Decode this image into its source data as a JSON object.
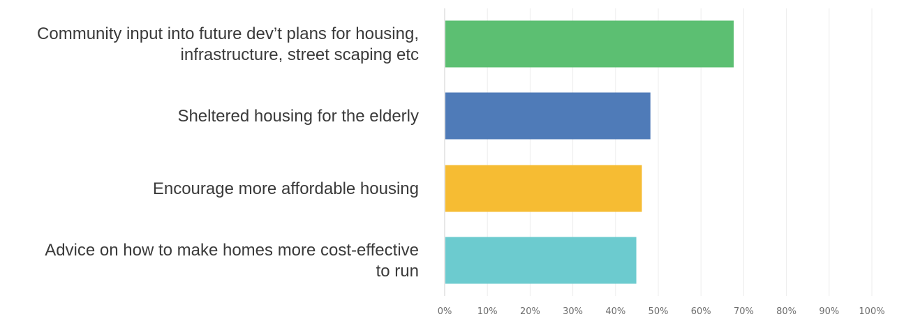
{
  "chart_data": {
    "type": "bar",
    "orientation": "horizontal",
    "categories": [
      [
        "Community input into future dev’t plans for housing,",
        "infrastructure, street scaping etc"
      ],
      [
        "Sheltered housing for the elderly"
      ],
      [
        "Encourage more affordable housing"
      ],
      [
        "Advice on how to make homes more cost-effective",
        "to run"
      ]
    ],
    "values": [
      67.5,
      48.0,
      46.0,
      44.7
    ],
    "colors": [
      "#5cbf72",
      "#4f7bb8",
      "#f6bc33",
      "#6ccbcf"
    ],
    "xlim": [
      0,
      100
    ],
    "x_ticks": [
      "0%",
      "10%",
      "20%",
      "30%",
      "40%",
      "50%",
      "60%",
      "70%",
      "80%",
      "90%",
      "100%"
    ],
    "grid": true,
    "title": "",
    "xlabel": "",
    "ylabel": ""
  }
}
